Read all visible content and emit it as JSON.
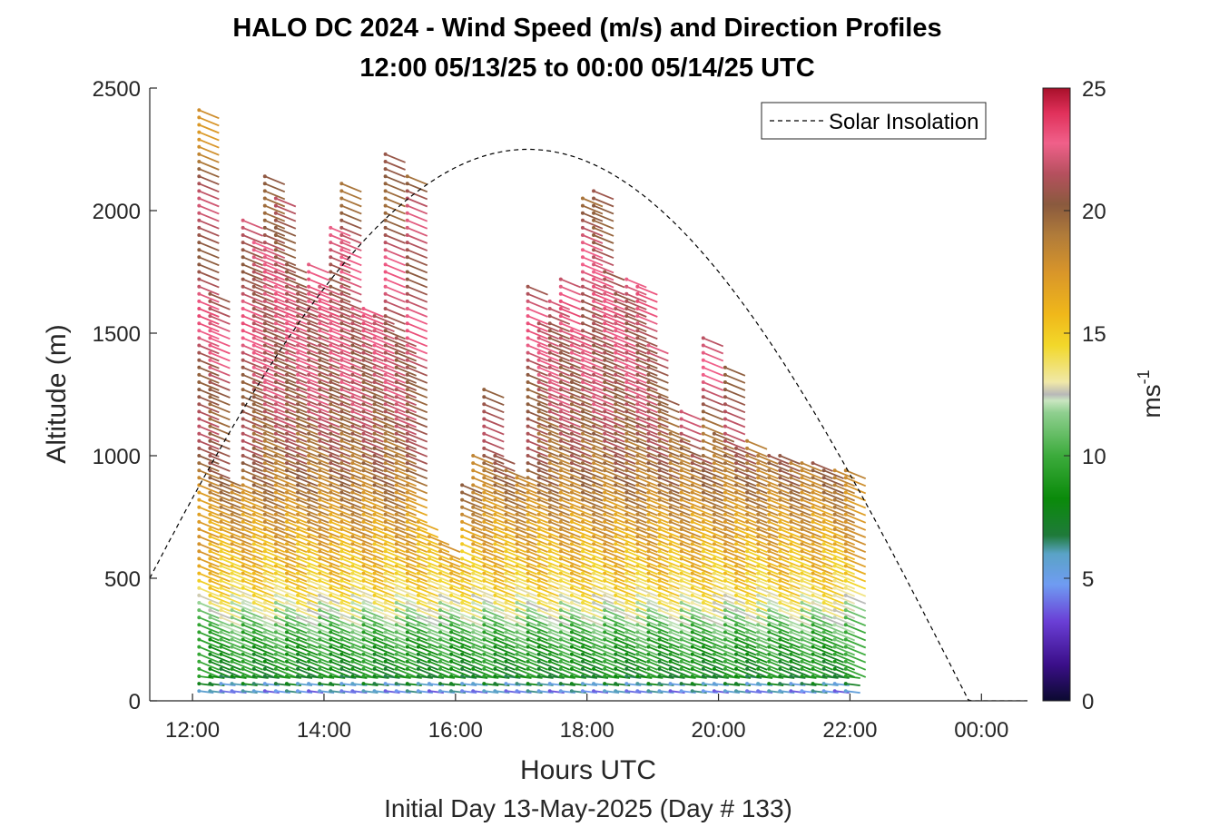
{
  "chart_data": {
    "type": "scatter",
    "title": "HALO DC 2024 - Wind Speed (m/s) and Direction Profiles",
    "subtitle": "12:00 05/13/25 to 00:00 05/14/25  UTC",
    "xlabel": "Hours UTC",
    "xlabel2": "Initial Day 13-May-2025 (Day # 133)",
    "ylabel": "Altitude (m)",
    "x_ticks": [
      "12:00",
      "14:00",
      "16:00",
      "18:00",
      "20:00",
      "22:00",
      "00:00"
    ],
    "x_tick_hours": [
      12,
      14,
      16,
      18,
      20,
      22,
      24
    ],
    "xlim_hours": [
      11.35,
      24.7
    ],
    "ylim": [
      0,
      2500
    ],
    "y_ticks": [
      "0",
      "500",
      "1000",
      "1500",
      "2000",
      "2500"
    ],
    "y_tick_values": [
      0,
      500,
      1000,
      1500,
      2000,
      2500
    ],
    "colorbar": {
      "label_base": "ms",
      "label_exp": "-1",
      "range": [
        0,
        25
      ],
      "ticks": [
        "0",
        "5",
        "10",
        "15",
        "20",
        "25"
      ],
      "tick_values": [
        0,
        5,
        10,
        15,
        20,
        25
      ]
    },
    "legend": {
      "entry": "Solar Insolation",
      "style": "dashed",
      "position": "top-right"
    },
    "profile_start_hour": 12.1,
    "profile_step_hours": 0.1667,
    "profile_count": 60,
    "profile_top_altitudes": [
      2410,
      1670,
      920,
      880,
      1960,
      1880,
      2140,
      2050,
      1800,
      1700,
      1780,
      1700,
      1940,
      2110,
      1620,
      1600,
      1590,
      2230,
      1480,
      2140,
      750,
      680,
      650,
      600,
      900,
      1010,
      1290,
      1020,
      960,
      920,
      1700,
      1550,
      1650,
      1720,
      1520,
      2060,
      2080,
      1760,
      1680,
      1740,
      1700,
      1460,
      1260,
      1100,
      1180,
      1010,
      1500,
      1110,
      1380,
      1050,
      1060,
      1020,
      1010,
      1000,
      990,
      980,
      970,
      960,
      950,
      940
    ],
    "profile_bottom_altitude": 40,
    "level_spacing_m": 30,
    "wind_speed_by_altitude": [
      [
        40,
        5
      ],
      [
        100,
        8
      ],
      [
        200,
        9
      ],
      [
        300,
        10.5
      ],
      [
        400,
        13
      ],
      [
        500,
        15
      ],
      [
        700,
        17
      ],
      [
        900,
        19
      ],
      [
        1200,
        21
      ],
      [
        1600,
        22
      ],
      [
        2000,
        21
      ],
      [
        2400,
        18
      ]
    ],
    "wind_direction_approx": "from north-northwest, barbs pointing down-right",
    "solar_insolation_curve": {
      "peak_hour": 17.1,
      "peak_altitude": 2250,
      "end_hour": 23.9,
      "start_altitude_at_xmin": 500
    }
  }
}
